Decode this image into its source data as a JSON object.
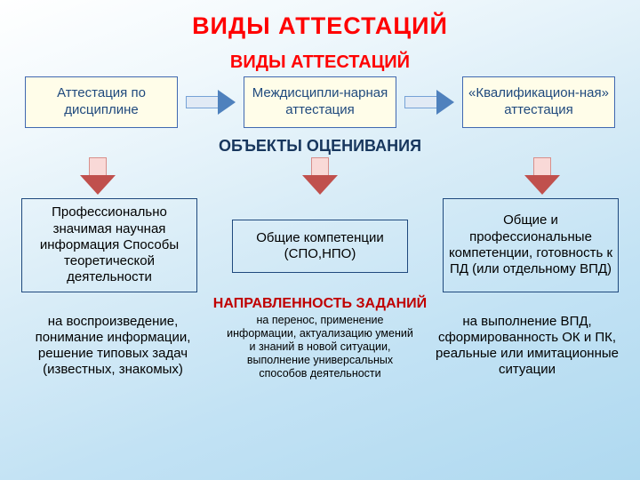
{
  "colors": {
    "title": "#ff0000",
    "subtitle": "#ff0000",
    "section": "#17365d",
    "tasks_label": "#c00000",
    "type_box_bg": "#fffde9",
    "type_box_border": "#4068b0",
    "type_box_text": "#1f497d",
    "harrow_shaft_fill": "#e1eaf5",
    "harrow_shaft_stroke": "#76a2d6",
    "harrow_head": "#4f81bd",
    "darrow_shaft_fill": "#f9d9d7",
    "darrow_shaft_stroke": "#d88f8b",
    "darrow_head": "#c0504d",
    "obj_box_border": "#1f497d",
    "obj_box_text": "#000000",
    "task_text": "#000000"
  },
  "main_title": "ВИДЫ АТТЕСТАЦИЙ",
  "subtitle": "ВИДЫ АТТЕСТАЦИЙ",
  "types": {
    "c0": "Аттестация по дисциплине",
    "c1": "Междисципли-нарная аттестация",
    "c2": "«Квалификацион-ная» аттестация"
  },
  "objects_label": "ОБЪЕКТЫ ОЦЕНИВАНИЯ",
  "objects": {
    "c0": "Профессионально значимая научная информация Способы теоретической деятельности",
    "c1": "Общие компетенции (СПО,НПО)",
    "c2": "Общие и профессиональные компетенции, готовность к ПД (или отдельному ВПД)"
  },
  "tasks_label": "НАПРАВЛЕННОСТЬ ЗАДАНИЙ",
  "tasks": {
    "c0": "на воспроизведение, понимание информации, решение типовых задач (известных, знакомых)",
    "c1": "на перенос, применение информации, актуализацию умений и знаний в новой ситуации, выполнение универсальных способов деятельности",
    "c2": "на выполнение ВПД, сформированность ОК и ПК, реальные или имитационные ситуации"
  }
}
